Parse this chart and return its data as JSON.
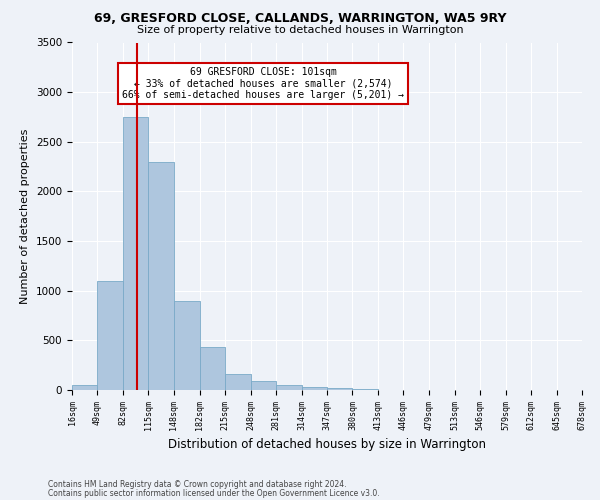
{
  "title1": "69, GRESFORD CLOSE, CALLANDS, WARRINGTON, WA5 9RY",
  "title2": "Size of property relative to detached houses in Warrington",
  "xlabel": "Distribution of detached houses by size in Warrington",
  "ylabel": "Number of detached properties",
  "footer1": "Contains HM Land Registry data © Crown copyright and database right 2024.",
  "footer2": "Contains public sector information licensed under the Open Government Licence v3.0.",
  "annotation_line1": "69 GRESFORD CLOSE: 101sqm",
  "annotation_line2": "← 33% of detached houses are smaller (2,574)",
  "annotation_line3": "66% of semi-detached houses are larger (5,201) →",
  "bar_color": "#aec6de",
  "bar_edge_color": "#7aaac8",
  "vline_color": "#cc0000",
  "vline_x": 101,
  "bin_edges": [
    16,
    49,
    82,
    115,
    148,
    182,
    215,
    248,
    281,
    314,
    347,
    380,
    413,
    446,
    479,
    513,
    546,
    579,
    612,
    645,
    678
  ],
  "bar_heights": [
    50,
    1100,
    2750,
    2300,
    900,
    430,
    160,
    90,
    55,
    35,
    20,
    10,
    5,
    3,
    2,
    1,
    1,
    0,
    0,
    0
  ],
  "ylim": [
    0,
    3500
  ],
  "yticks": [
    0,
    500,
    1000,
    1500,
    2000,
    2500,
    3000,
    3500
  ],
  "background_color": "#eef2f8",
  "grid_color": "#ffffff",
  "title1_fontsize": 9,
  "title2_fontsize": 8,
  "ylabel_fontsize": 8,
  "xlabel_fontsize": 8.5,
  "tick_fontsize": 6,
  "footer_fontsize": 5.5
}
